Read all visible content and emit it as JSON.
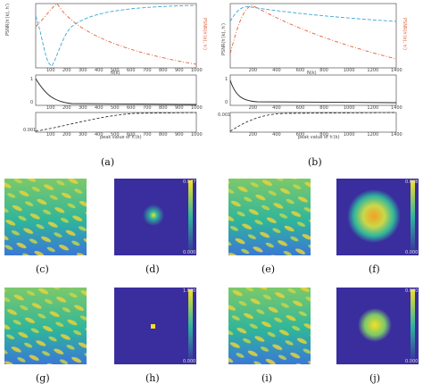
{
  "captions": {
    "a": "(a)",
    "b": "(b)",
    "c": "(c)",
    "d": "(d)",
    "e": "(e)",
    "f": "(f)",
    "g": "(g)",
    "h": "(h)",
    "i": "(i)",
    "j": "(j)"
  },
  "panel_a": {
    "top_xlabel": "N(k)",
    "top_left_ylabel": "PSNR(h′(k), h′)",
    "top_right_ylabel": "PSNR(h′(k), h′)",
    "x_ticks": [
      "100",
      "200",
      "300",
      "400",
      "500",
      "600",
      "700",
      "800",
      "900",
      "1000"
    ],
    "bottom_xlabel": "peak value of h′(k)",
    "mid_yticks": [
      "1",
      "0"
    ],
    "bot_ytick": "0.001"
  },
  "panel_b": {
    "top_xlabel": "N(k)",
    "top_left_ylabel": "PSNR(h′(k), h′)",
    "top_right_ylabel": "PSNR(h′(k), h′)",
    "x_ticks": [
      "200",
      "400",
      "600",
      "800",
      "1000",
      "1200",
      "1400"
    ],
    "bottom_xlabel": "peak value of h′(k)",
    "mid_yticks": [
      "1",
      "0"
    ],
    "bot_ytick": "0.001"
  },
  "colorbars": {
    "d": [
      "0.077",
      "0.000"
    ],
    "f": [
      "0.008",
      "0.000"
    ],
    "h": [
      "1.000",
      "0.000"
    ],
    "j": [
      "0.090",
      "0.000"
    ]
  },
  "colors": {
    "cyan": "#3aa6d8",
    "orange": "#e0623a",
    "heat_low": "#3a2d9e",
    "heat_mid": "#2fb59c",
    "heat_high": "#f4e022"
  }
}
